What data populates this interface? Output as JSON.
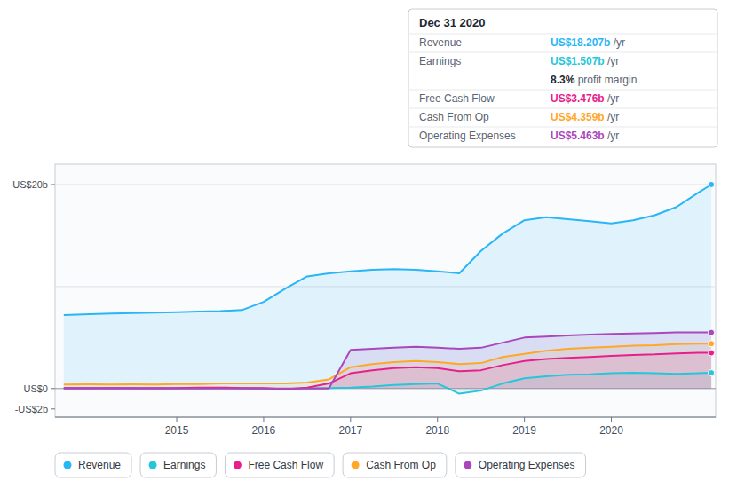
{
  "chart_data": {
    "type": "area",
    "x": [
      2013.7,
      2014.0,
      2014.25,
      2014.5,
      2014.75,
      2015.0,
      2015.25,
      2015.5,
      2015.75,
      2016.0,
      2016.25,
      2016.5,
      2016.75,
      2017.0,
      2017.25,
      2017.5,
      2017.75,
      2018.0,
      2018.25,
      2018.5,
      2018.75,
      2019.0,
      2019.25,
      2019.5,
      2019.75,
      2020.0,
      2020.25,
      2020.5,
      2020.75,
      2021.0,
      2021.15
    ],
    "series": [
      {
        "name": "Revenue",
        "color": "#29b6f6",
        "values": [
          7.2,
          7.3,
          7.35,
          7.4,
          7.45,
          7.5,
          7.55,
          7.6,
          7.7,
          8.5,
          9.8,
          11.0,
          11.3,
          11.5,
          11.65,
          11.7,
          11.65,
          11.5,
          11.3,
          13.5,
          15.2,
          16.5,
          16.8,
          16.6,
          16.4,
          16.2,
          16.5,
          17.0,
          17.8,
          19.2,
          20.0
        ]
      },
      {
        "name": "Earnings",
        "color": "#26c6da",
        "values": [
          0.05,
          0.06,
          0.05,
          0.04,
          0.03,
          0.05,
          0.06,
          0.07,
          0.06,
          0.0,
          -0.05,
          0.02,
          0.05,
          0.1,
          0.2,
          0.35,
          0.45,
          0.5,
          -0.5,
          -0.2,
          0.5,
          1.0,
          1.2,
          1.35,
          1.4,
          1.5,
          1.55,
          1.5,
          1.45,
          1.5,
          1.55
        ]
      },
      {
        "name": "Free Cash Flow",
        "color": "#e91e8c",
        "values": [
          0.05,
          0.05,
          0.05,
          0.05,
          0.05,
          0.05,
          0.1,
          0.1,
          0.05,
          0.05,
          -0.05,
          0.1,
          0.5,
          1.5,
          1.8,
          2.0,
          2.1,
          2.0,
          1.7,
          1.8,
          2.3,
          2.7,
          2.9,
          3.0,
          3.1,
          3.2,
          3.3,
          3.35,
          3.45,
          3.5,
          3.5
        ]
      },
      {
        "name": "Cash From Op",
        "color": "#ffa726",
        "values": [
          0.4,
          0.42,
          0.4,
          0.42,
          0.4,
          0.45,
          0.45,
          0.5,
          0.5,
          0.5,
          0.5,
          0.6,
          0.9,
          2.1,
          2.4,
          2.6,
          2.7,
          2.6,
          2.4,
          2.5,
          3.1,
          3.4,
          3.7,
          3.9,
          4.0,
          4.1,
          4.2,
          4.25,
          4.35,
          4.4,
          4.4
        ]
      },
      {
        "name": "Operating Expenses",
        "color": "#ab47bc",
        "values": [
          0.0,
          0.0,
          0.0,
          0.0,
          0.0,
          0.0,
          0.0,
          0.0,
          0.0,
          0.0,
          0.0,
          0.0,
          0.0,
          3.8,
          3.9,
          4.0,
          4.1,
          4.0,
          3.9,
          4.0,
          4.5,
          5.0,
          5.1,
          5.2,
          5.3,
          5.35,
          5.4,
          5.45,
          5.5,
          5.5,
          5.5
        ]
      }
    ],
    "xlim": [
      2013.6,
      2021.2
    ],
    "xticks": [
      2015,
      2016,
      2017,
      2018,
      2019,
      2020
    ],
    "ylim": [
      -2.8,
      22.0
    ],
    "yticks": [
      {
        "value": -2,
        "label": "-US$2b"
      },
      {
        "value": 0,
        "label": "US$0"
      },
      {
        "value": 20,
        "label": "US$20b"
      }
    ],
    "hlines": [
      0,
      10,
      20
    ],
    "tooltip": {
      "title": "Dec 31 2020",
      "rows": [
        {
          "label": "Revenue",
          "value": "US$18.207b",
          "suffix": " /yr",
          "color": "#29b6f6"
        },
        {
          "label": "Earnings",
          "value": "US$1.507b",
          "suffix": " /yr",
          "color": "#26c6da"
        },
        {
          "value": "8.3%",
          "suffix": " profit margin"
        },
        {
          "label": "Free Cash Flow",
          "value": "US$3.476b",
          "suffix": " /yr",
          "color": "#e91e8c"
        },
        {
          "label": "Cash From Op",
          "value": "US$4.359b",
          "suffix": " /yr",
          "color": "#ffa726"
        },
        {
          "label": "Operating Expenses",
          "value": "US$5.463b",
          "suffix": " /yr",
          "color": "#ab47bc"
        }
      ]
    }
  }
}
